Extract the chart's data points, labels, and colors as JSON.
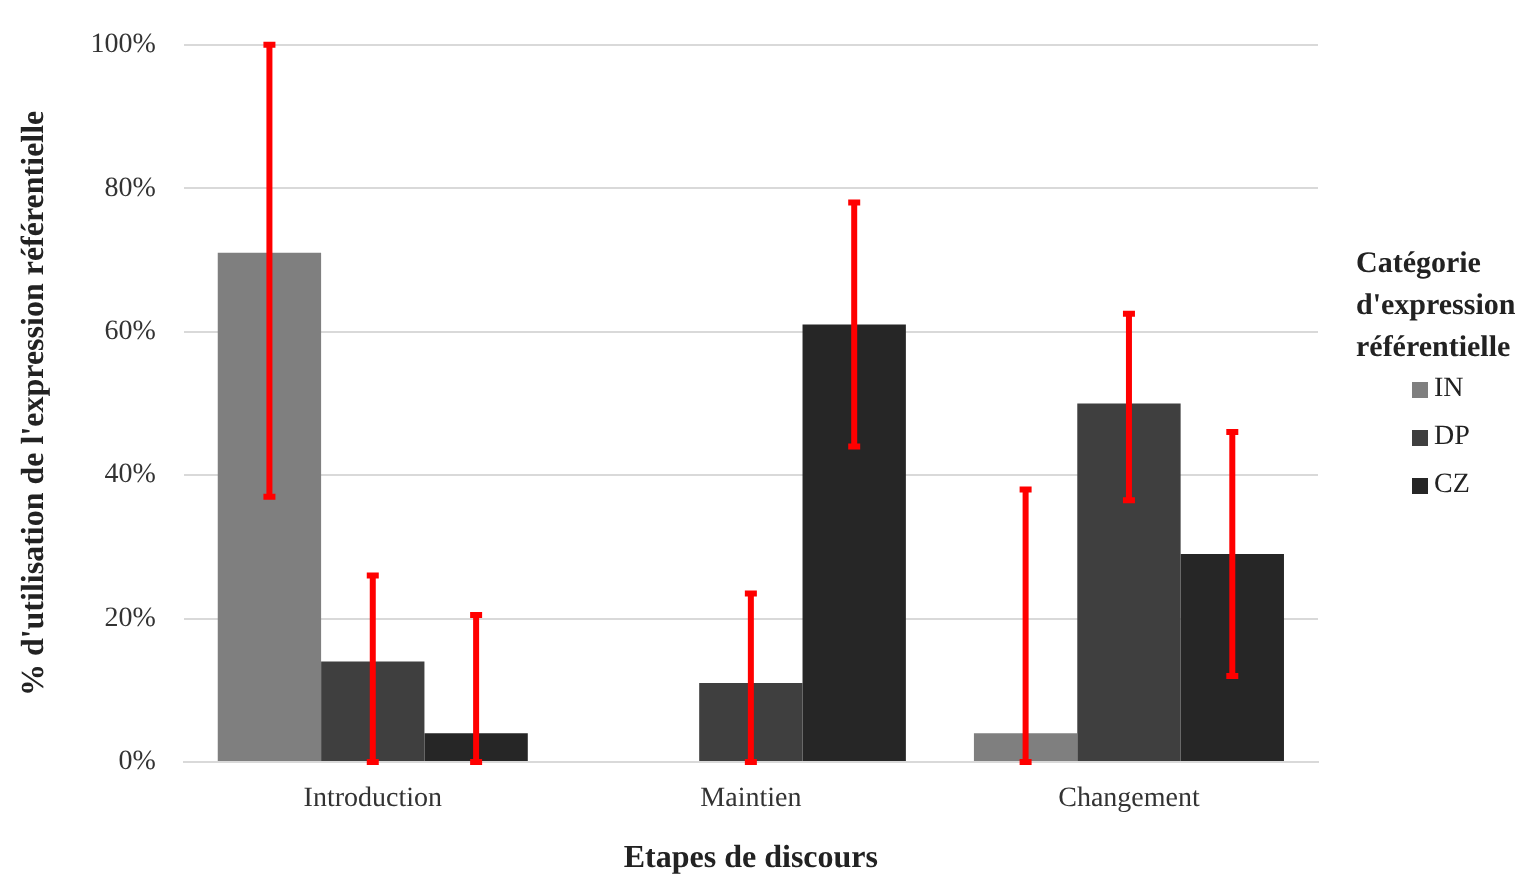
{
  "chart_data": {
    "type": "bar",
    "xlabel": "Etapes de discours",
    "ylabel": "% d'utilisation de l'expression référentielle",
    "legend_title": "Catégorie d'expression référentielle",
    "categories": [
      "Introduction",
      "Maintien",
      "Changement"
    ],
    "series": [
      {
        "name": "IN",
        "color": "#7f7f7f",
        "values": [
          71,
          null,
          4
        ],
        "errors": [
          [
            37,
            100
          ],
          null,
          [
            0,
            38
          ]
        ]
      },
      {
        "name": "DP",
        "color": "#3f3f3f",
        "values": [
          14,
          11,
          50
        ],
        "errors": [
          [
            0,
            26
          ],
          [
            0,
            23.5
          ],
          [
            36.5,
            62.5
          ]
        ]
      },
      {
        "name": "CZ",
        "color": "#262626",
        "values": [
          4,
          61,
          29
        ],
        "errors": [
          [
            0,
            20.5
          ],
          [
            44,
            78
          ],
          [
            12,
            46
          ]
        ]
      }
    ],
    "ylim": [
      0,
      100
    ],
    "yticks": [
      {
        "value": 0,
        "label": "0%"
      },
      {
        "value": 20,
        "label": "20%"
      },
      {
        "value": 40,
        "label": "40%"
      },
      {
        "value": 60,
        "label": "60%"
      },
      {
        "value": 80,
        "label": "80%"
      },
      {
        "value": 100,
        "label": "100%"
      }
    ],
    "grid": "y",
    "legend": "right"
  }
}
